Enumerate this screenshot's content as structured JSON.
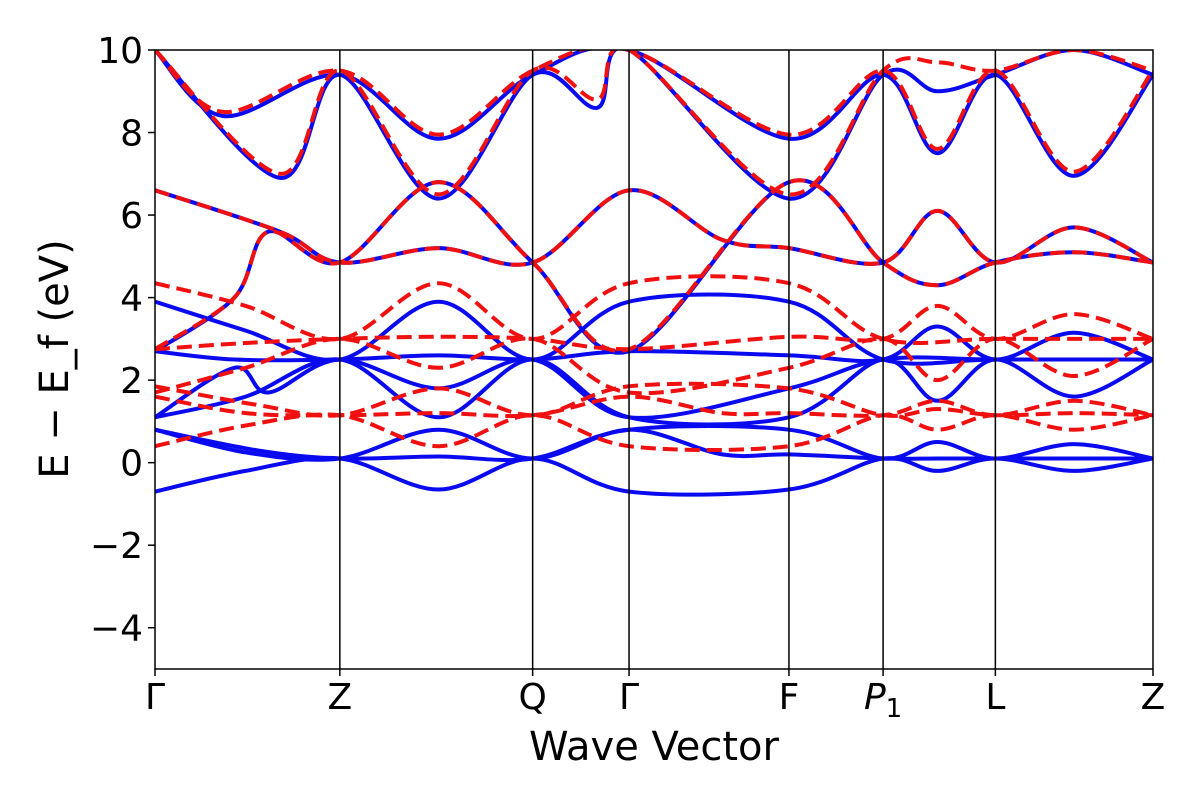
{
  "chart_data": {
    "type": "line",
    "xlabel": "Wave Vector",
    "ylabel": "E − E_f (eV)",
    "ylim": [
      -5,
      10
    ],
    "yticks": [
      -4,
      -2,
      0,
      2,
      4,
      6,
      8,
      10
    ],
    "ytick_labels": [
      "−4",
      "−2",
      "0",
      "2",
      "4",
      "6",
      "8",
      "10"
    ],
    "xlim": [
      0,
      8.8
    ],
    "high_symmetry_points": [
      {
        "label": "Γ",
        "x": 0.0
      },
      {
        "label": "Z",
        "x": 1.63
      },
      {
        "label": "Q",
        "x": 3.33
      },
      {
        "label": "Γ",
        "x": 4.18
      },
      {
        "label": "F",
        "x": 5.59
      },
      {
        "label": "P",
        "sub": "1",
        "x": 6.42
      },
      {
        "label": "L",
        "x": 7.41
      },
      {
        "label": "Z",
        "x": 8.8
      }
    ],
    "grid": false,
    "legend": "none",
    "colors": {
      "solid": "#0a0af0",
      "dashed": "#f01010",
      "vline": "#000000"
    },
    "series": [
      {
        "style": "solid",
        "color": "#0a0af0",
        "points": [
          [
            0,
            -0.7
          ],
          [
            0.8,
            -0.2
          ],
          [
            1.63,
            0.1
          ],
          [
            2.5,
            -0.65
          ],
          [
            3.33,
            0.1
          ],
          [
            4.18,
            -0.7
          ],
          [
            5.59,
            -0.65
          ],
          [
            6.42,
            0.1
          ],
          [
            6.9,
            -0.2
          ],
          [
            7.41,
            0.1
          ],
          [
            8.1,
            -0.2
          ],
          [
            8.8,
            0.1
          ]
        ]
      },
      {
        "style": "solid",
        "color": "#0a0af0",
        "points": [
          [
            0,
            0.8
          ],
          [
            0.9,
            0.3
          ],
          [
            1.63,
            0.1
          ],
          [
            2.5,
            0.15
          ],
          [
            3.33,
            0.1
          ],
          [
            4.18,
            0.8
          ],
          [
            5.59,
            0.8
          ],
          [
            6.42,
            0.1
          ],
          [
            6.9,
            0.5
          ],
          [
            7.41,
            0.1
          ],
          [
            8.1,
            0.45
          ],
          [
            8.8,
            0.1
          ]
        ]
      },
      {
        "style": "solid",
        "color": "#0a0af0",
        "points": [
          [
            0,
            0.8
          ],
          [
            0.8,
            0.25
          ],
          [
            1.63,
            0.1
          ],
          [
            2.5,
            0.8
          ],
          [
            3.33,
            0.1
          ],
          [
            4.18,
            0.8
          ],
          [
            5.0,
            0.2
          ],
          [
            5.59,
            0.2
          ],
          [
            6.42,
            0.1
          ],
          [
            6.9,
            0.1
          ],
          [
            7.41,
            0.1
          ],
          [
            8.1,
            0.1
          ],
          [
            8.8,
            0.1
          ]
        ]
      },
      {
        "style": "solid",
        "color": "#0a0af0",
        "points": [
          [
            0,
            1.1
          ],
          [
            0.8,
            1.6
          ],
          [
            1.63,
            2.5
          ],
          [
            2.5,
            1.1
          ],
          [
            3.33,
            2.5
          ],
          [
            4.18,
            1.1
          ],
          [
            5.59,
            1.1
          ],
          [
            6.42,
            2.5
          ],
          [
            6.9,
            1.5
          ],
          [
            7.41,
            2.5
          ],
          [
            8.1,
            1.6
          ],
          [
            8.8,
            2.5
          ]
        ]
      },
      {
        "style": "solid",
        "color": "#0a0af0",
        "points": [
          [
            0,
            1.1
          ],
          [
            0.7,
            2.3
          ],
          [
            1.0,
            1.7
          ],
          [
            1.63,
            2.5
          ],
          [
            2.5,
            1.8
          ],
          [
            3.33,
            2.5
          ],
          [
            4.18,
            1.1
          ],
          [
            5.59,
            1.8
          ],
          [
            6.42,
            2.5
          ],
          [
            7.41,
            2.5
          ],
          [
            8.8,
            2.5
          ]
        ]
      },
      {
        "style": "solid",
        "color": "#0a0af0",
        "points": [
          [
            0,
            2.7
          ],
          [
            0.7,
            2.5
          ],
          [
            1.63,
            2.5
          ],
          [
            2.5,
            2.6
          ],
          [
            3.33,
            2.5
          ],
          [
            4.18,
            2.7
          ],
          [
            5.59,
            2.6
          ],
          [
            6.42,
            2.5
          ],
          [
            6.9,
            3.3
          ],
          [
            7.41,
            2.5
          ],
          [
            8.1,
            3.15
          ],
          [
            8.8,
            2.5
          ]
        ]
      },
      {
        "style": "solid",
        "color": "#0a0af0",
        "points": [
          [
            0,
            3.9
          ],
          [
            0.8,
            3.2
          ],
          [
            1.63,
            2.5
          ],
          [
            2.5,
            3.9
          ],
          [
            3.33,
            2.5
          ],
          [
            4.18,
            3.9
          ],
          [
            5.59,
            3.9
          ],
          [
            6.42,
            2.5
          ],
          [
            7.41,
            2.5
          ],
          [
            8.8,
            2.5
          ]
        ]
      },
      {
        "style": "solid",
        "color": "#0a0af0",
        "points": [
          [
            0,
            6.6
          ],
          [
            1.1,
            5.6
          ],
          [
            1.63,
            4.85
          ],
          [
            2.5,
            5.2
          ],
          [
            3.33,
            4.85
          ],
          [
            4.18,
            6.6
          ],
          [
            5.0,
            5.4
          ],
          [
            5.59,
            5.2
          ],
          [
            6.42,
            4.85
          ],
          [
            6.9,
            6.1
          ],
          [
            7.41,
            4.85
          ],
          [
            8.1,
            5.7
          ],
          [
            8.8,
            4.85
          ]
        ]
      },
      {
        "style": "solid",
        "color": "#0a0af0",
        "points": [
          [
            0,
            2.7
          ],
          [
            0.7,
            4.0
          ],
          [
            1.0,
            5.6
          ],
          [
            1.63,
            4.85
          ],
          [
            2.5,
            6.8
          ],
          [
            3.33,
            4.85
          ],
          [
            4.18,
            2.7
          ],
          [
            5.59,
            6.8
          ],
          [
            6.42,
            4.85
          ],
          [
            6.9,
            4.3
          ],
          [
            7.41,
            4.85
          ],
          [
            8.1,
            5.1
          ],
          [
            8.8,
            4.85
          ]
        ]
      },
      {
        "style": "solid",
        "color": "#0a0af0",
        "points": [
          [
            0,
            10.0
          ],
          [
            0.6,
            8.4
          ],
          [
            1.63,
            9.4
          ],
          [
            2.5,
            7.85
          ],
          [
            3.33,
            9.4
          ],
          [
            4.18,
            10.0
          ],
          [
            5.59,
            7.85
          ],
          [
            6.42,
            9.4
          ],
          [
            6.9,
            7.5
          ],
          [
            7.41,
            9.4
          ],
          [
            8.1,
            6.95
          ],
          [
            8.8,
            9.4
          ]
        ]
      },
      {
        "style": "solid",
        "color": "#0a0af0",
        "points": [
          [
            0,
            10.0
          ],
          [
            1.1,
            6.9
          ],
          [
            1.63,
            9.4
          ],
          [
            2.5,
            6.4
          ],
          [
            3.33,
            9.4
          ],
          [
            3.9,
            8.6
          ],
          [
            4.18,
            10.0
          ],
          [
            5.59,
            6.4
          ],
          [
            6.42,
            9.4
          ],
          [
            6.9,
            9.0
          ],
          [
            7.41,
            9.4
          ],
          [
            8.1,
            10.0
          ],
          [
            8.8,
            9.4
          ]
        ]
      },
      {
        "style": "dashed",
        "color": "#f01010",
        "points": [
          [
            0,
            0.4
          ],
          [
            0.8,
            0.9
          ],
          [
            1.63,
            1.15
          ],
          [
            2.5,
            0.4
          ],
          [
            3.33,
            1.15
          ],
          [
            4.18,
            0.4
          ],
          [
            5.59,
            0.4
          ],
          [
            6.42,
            1.15
          ],
          [
            6.9,
            0.8
          ],
          [
            7.41,
            1.15
          ],
          [
            8.1,
            0.8
          ],
          [
            8.8,
            1.15
          ]
        ]
      },
      {
        "style": "dashed",
        "color": "#f01010",
        "points": [
          [
            0,
            1.6
          ],
          [
            0.8,
            1.2
          ],
          [
            1.63,
            1.15
          ],
          [
            2.5,
            1.2
          ],
          [
            3.33,
            1.15
          ],
          [
            4.18,
            1.6
          ],
          [
            5.0,
            1.2
          ],
          [
            5.59,
            1.2
          ],
          [
            6.42,
            1.15
          ],
          [
            6.9,
            1.5
          ],
          [
            7.41,
            1.15
          ],
          [
            8.1,
            1.5
          ],
          [
            8.8,
            1.15
          ]
        ]
      },
      {
        "style": "dashed",
        "color": "#f01010",
        "points": [
          [
            0,
            1.85
          ],
          [
            0.9,
            1.4
          ],
          [
            1.63,
            1.15
          ],
          [
            2.5,
            1.8
          ],
          [
            3.33,
            1.15
          ],
          [
            4.18,
            1.85
          ],
          [
            5.59,
            1.8
          ],
          [
            6.42,
            1.15
          ],
          [
            6.9,
            1.3
          ],
          [
            7.41,
            1.15
          ],
          [
            8.1,
            1.2
          ],
          [
            8.8,
            1.15
          ]
        ]
      },
      {
        "style": "dashed",
        "color": "#f01010",
        "points": [
          [
            0,
            1.7
          ],
          [
            0.8,
            2.3
          ],
          [
            1.63,
            3.0
          ],
          [
            2.5,
            2.3
          ],
          [
            3.33,
            3.0
          ],
          [
            4.18,
            1.7
          ],
          [
            5.59,
            2.3
          ],
          [
            6.42,
            3.0
          ],
          [
            6.9,
            2.0
          ],
          [
            7.41,
            3.0
          ],
          [
            8.1,
            2.1
          ],
          [
            8.8,
            3.0
          ]
        ]
      },
      {
        "style": "dashed",
        "color": "#f01010",
        "points": [
          [
            0,
            2.75
          ],
          [
            0.8,
            2.9
          ],
          [
            1.63,
            3.0
          ],
          [
            2.5,
            3.05
          ],
          [
            3.33,
            3.0
          ],
          [
            4.18,
            2.75
          ],
          [
            5.59,
            3.05
          ],
          [
            6.42,
            3.0
          ],
          [
            6.9,
            3.8
          ],
          [
            7.41,
            3.0
          ],
          [
            8.1,
            3.6
          ],
          [
            8.8,
            3.0
          ]
        ]
      },
      {
        "style": "dashed",
        "color": "#f01010",
        "points": [
          [
            0,
            4.35
          ],
          [
            0.8,
            3.8
          ],
          [
            1.63,
            3.0
          ],
          [
            2.5,
            4.35
          ],
          [
            3.33,
            3.0
          ],
          [
            4.18,
            4.35
          ],
          [
            5.59,
            4.35
          ],
          [
            6.42,
            3.0
          ],
          [
            7.41,
            3.0
          ],
          [
            8.8,
            3.0
          ]
        ]
      },
      {
        "style": "dashed",
        "color": "#f01010",
        "points": [
          [
            0,
            6.6
          ],
          [
            1.1,
            5.6
          ],
          [
            1.63,
            4.85
          ],
          [
            2.5,
            5.2
          ],
          [
            3.33,
            4.85
          ],
          [
            4.18,
            6.6
          ],
          [
            5.0,
            5.4
          ],
          [
            5.59,
            5.2
          ],
          [
            6.42,
            4.85
          ],
          [
            6.9,
            6.1
          ],
          [
            7.41,
            4.85
          ],
          [
            8.1,
            5.7
          ],
          [
            8.8,
            4.85
          ]
        ]
      },
      {
        "style": "dashed",
        "color": "#f01010",
        "points": [
          [
            0,
            2.75
          ],
          [
            0.7,
            4.0
          ],
          [
            1.0,
            5.6
          ],
          [
            1.63,
            4.85
          ],
          [
            2.5,
            6.8
          ],
          [
            3.33,
            4.85
          ],
          [
            4.18,
            2.75
          ],
          [
            5.59,
            6.8
          ],
          [
            6.42,
            4.85
          ],
          [
            6.9,
            4.3
          ],
          [
            7.41,
            4.85
          ],
          [
            8.1,
            5.1
          ],
          [
            8.8,
            4.85
          ]
        ]
      },
      {
        "style": "dashed",
        "color": "#f01010",
        "points": [
          [
            0,
            10.0
          ],
          [
            0.6,
            8.5
          ],
          [
            1.63,
            9.5
          ],
          [
            2.5,
            7.95
          ],
          [
            3.33,
            9.5
          ],
          [
            4.18,
            10.0
          ],
          [
            5.59,
            7.95
          ],
          [
            6.42,
            9.5
          ],
          [
            6.9,
            7.6
          ],
          [
            7.41,
            9.5
          ],
          [
            8.1,
            7.05
          ],
          [
            8.8,
            9.5
          ]
        ]
      },
      {
        "style": "dashed",
        "color": "#f01010",
        "points": [
          [
            0,
            10.0
          ],
          [
            1.1,
            7.0
          ],
          [
            1.63,
            9.5
          ],
          [
            2.5,
            6.5
          ],
          [
            3.33,
            9.5
          ],
          [
            3.9,
            8.8
          ],
          [
            4.18,
            10.0
          ],
          [
            5.59,
            6.5
          ],
          [
            6.42,
            9.5
          ],
          [
            6.9,
            9.7
          ],
          [
            7.41,
            9.5
          ],
          [
            8.1,
            10.0
          ],
          [
            8.8,
            9.5
          ]
        ]
      }
    ]
  }
}
